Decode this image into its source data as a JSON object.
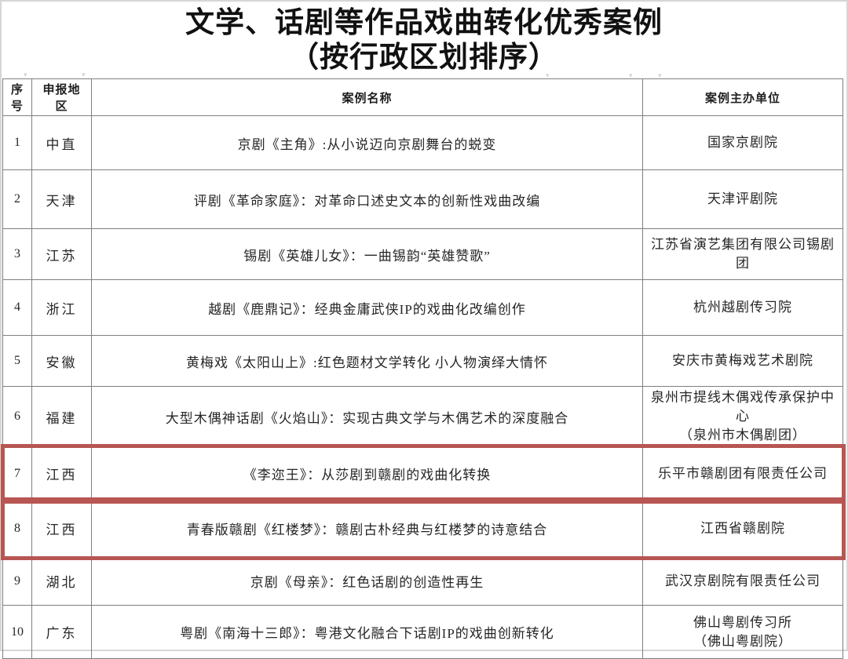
{
  "title": {
    "line1": "文学、话剧等作品戏曲转化优秀案例",
    "line2": "（按行政区划排序）"
  },
  "table": {
    "columns": [
      "序号",
      "申报地区",
      "案例名称",
      "案例主办单位"
    ],
    "rows": [
      {
        "no": "1",
        "region": "中直",
        "case_name": "京剧《主角》:从小说迈向京剧舞台的蜕变",
        "org": "国家京剧院",
        "highlighted": false
      },
      {
        "no": "2",
        "region": "天津",
        "case_name": "评剧《革命家庭》：对革命口述史文本的创新性戏曲改编",
        "org": "天津评剧院",
        "highlighted": false
      },
      {
        "no": "3",
        "region": "江苏",
        "case_name": "锡剧《英雄儿女》：一曲锡韵“英雄赞歌”",
        "org": "江苏省演艺集团有限公司锡剧团",
        "highlighted": false
      },
      {
        "no": "4",
        "region": "浙江",
        "case_name": "越剧《鹿鼎记》：经典金庸武侠IP的戏曲化改编创作",
        "org": "杭州越剧传习院",
        "highlighted": false
      },
      {
        "no": "5",
        "region": "安徽",
        "case_name": "黄梅戏《太阳山上》:红色题材文学转化 小人物演绎大情怀",
        "org": "安庆市黄梅戏艺术剧院",
        "highlighted": false
      },
      {
        "no": "6",
        "region": "福建",
        "case_name": "大型木偶神话剧《火焰山》：实现古典文学与木偶艺术的深度融合",
        "org": "泉州市提线木偶戏传承保护中心\n（泉州市木偶剧团）",
        "highlighted": false
      },
      {
        "no": "7",
        "region": "江西",
        "case_name": "《李迩王》：从莎剧到赣剧的戏曲化转换",
        "org": "乐平市赣剧团有限责任公司",
        "highlighted": true
      },
      {
        "no": "8",
        "region": "江西",
        "case_name": "青春版赣剧《红楼梦》：赣剧古朴经典与红楼梦的诗意结合",
        "org": "江西省赣剧院",
        "highlighted": true
      },
      {
        "no": "9",
        "region": "湖北",
        "case_name": "京剧《母亲》：红色话剧的创造性再生",
        "org": "武汉京剧院有限责任公司",
        "highlighted": false
      },
      {
        "no": "10",
        "region": "广东",
        "case_name": "粤剧《南海十三郎》：粤港文化融合下话剧IP的戏曲创新转化",
        "org": "佛山粤剧传习所\n（佛山粤剧院）",
        "highlighted": false
      }
    ]
  },
  "decorations": {
    "handle_glyph": "▾",
    "highlight_border_color": "#b75652",
    "grid_color": "#7f7f7f"
  }
}
